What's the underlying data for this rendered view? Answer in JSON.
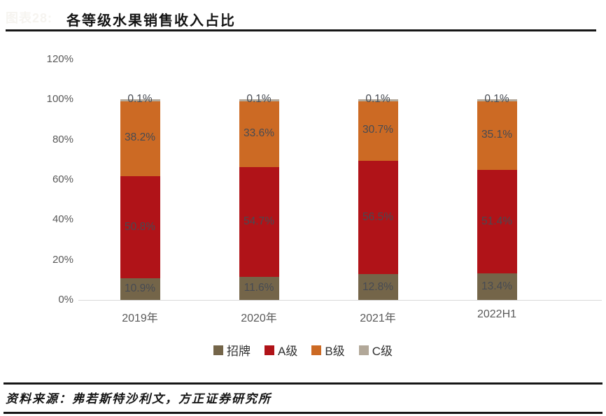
{
  "watermark": "图表28:",
  "header": {
    "title": "各等级水果销售收入占比"
  },
  "footer": {
    "source": "资料来源：弗若斯特沙利文，方正证券研究所"
  },
  "chart_data": {
    "type": "bar",
    "stacked": true,
    "percent_stacked": true,
    "title": "各等级水果销售收入占比",
    "xlabel": "",
    "ylabel": "",
    "categories": [
      "2019年",
      "2020年",
      "2021年",
      "2022H1"
    ],
    "series": [
      {
        "name": "招牌",
        "color": "#746549",
        "values": [
          10.9,
          11.6,
          12.8,
          13.4
        ]
      },
      {
        "name": "A级",
        "color": "#b01318",
        "values": [
          50.8,
          54.7,
          56.5,
          51.4
        ]
      },
      {
        "name": "B级",
        "color": "#cc6a24",
        "values": [
          38.2,
          33.6,
          30.7,
          35.1
        ]
      },
      {
        "name": "C级",
        "color": "#b2a899",
        "values": [
          0.1,
          0.1,
          0.1,
          0.1
        ]
      }
    ],
    "data_label_suffix": "%",
    "ylim": [
      0,
      120
    ],
    "ytick_step": 20,
    "ytick_labels": [
      "0%",
      "20%",
      "40%",
      "60%",
      "80%",
      "100%",
      "120%"
    ],
    "grid": false,
    "legend_position": "bottom",
    "colors": {
      "data_label": "#474b53",
      "axis_label": "#595959",
      "axis_line": "#d9d9d9"
    }
  }
}
